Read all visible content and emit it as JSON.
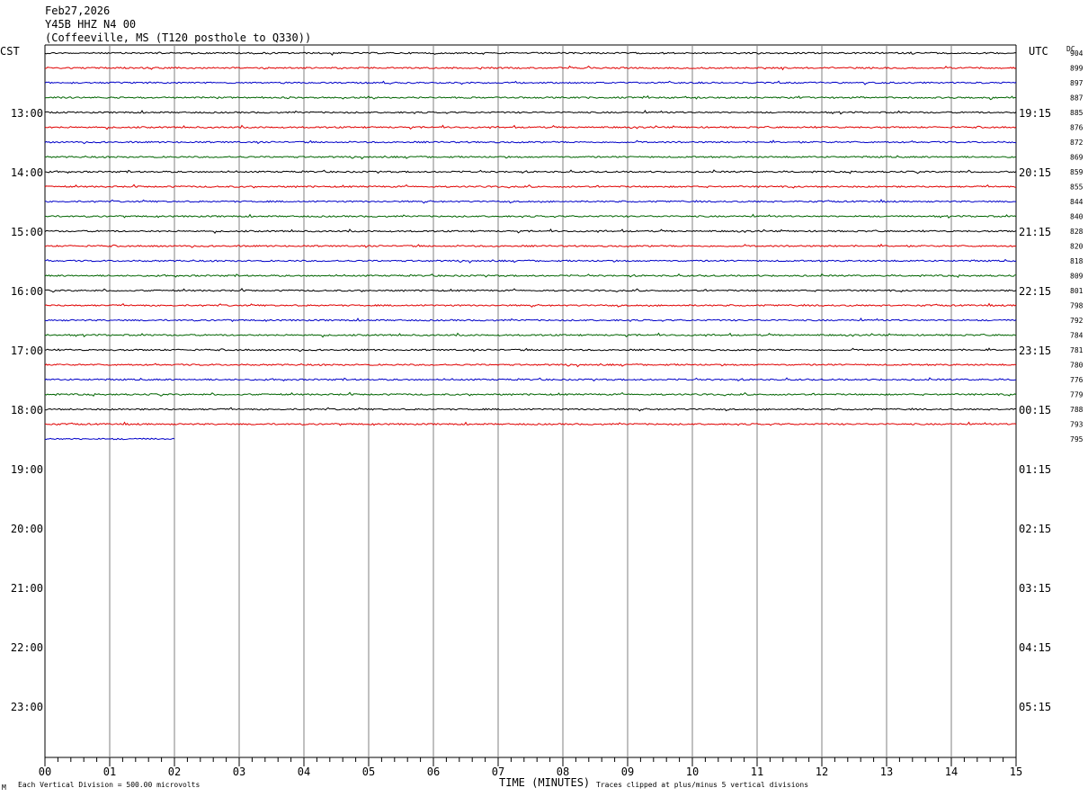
{
  "header": {
    "date": "Feb27,2026",
    "station": "Y45B HHZ N4 00",
    "location": "(Coffeeville, MS (T120 posthole to Q330))"
  },
  "left_axis_title": "CST",
  "right_axis_title": "UTC",
  "dc_header": "DC",
  "footer": {
    "scale_note": "Each Vertical Division =  500.00 microvolts",
    "clip_note": "Traces clipped at plus/minus 5 vertical divisions",
    "corner_mark": "M"
  },
  "colors": {
    "trace_cycle": [
      "#000000",
      "#e00000",
      "#0000c8",
      "#006400"
    ],
    "grid": "#808080"
  },
  "chart_data": {
    "type": "line",
    "title": "",
    "xlabel": "TIME (MINUTES)",
    "ylabel": "",
    "x_ticks": [
      "00",
      "01",
      "02",
      "03",
      "04",
      "05",
      "06",
      "07",
      "08",
      "09",
      "10",
      "11",
      "12",
      "13",
      "14",
      "15"
    ],
    "xlim": [
      0,
      15
    ],
    "trace_minutes_per_line": 15,
    "row_count": 48,
    "left_time_labels": [
      {
        "row": 4,
        "label": "13:00"
      },
      {
        "row": 8,
        "label": "14:00"
      },
      {
        "row": 12,
        "label": "15:00"
      },
      {
        "row": 16,
        "label": "16:00"
      },
      {
        "row": 20,
        "label": "17:00"
      },
      {
        "row": 24,
        "label": "18:00"
      },
      {
        "row": 28,
        "label": "19:00"
      },
      {
        "row": 32,
        "label": "20:00"
      },
      {
        "row": 36,
        "label": "21:00"
      },
      {
        "row": 40,
        "label": "22:00"
      },
      {
        "row": 44,
        "label": "23:00"
      }
    ],
    "right_time_labels": [
      {
        "row": 4,
        "label": "19:15"
      },
      {
        "row": 8,
        "label": "20:15"
      },
      {
        "row": 12,
        "label": "21:15"
      },
      {
        "row": 16,
        "label": "22:15"
      },
      {
        "row": 20,
        "label": "23:15"
      },
      {
        "row": 24,
        "label": "00:15"
      },
      {
        "row": 28,
        "label": "01:15"
      },
      {
        "row": 32,
        "label": "02:15"
      },
      {
        "row": 36,
        "label": "03:15"
      },
      {
        "row": 40,
        "label": "04:15"
      },
      {
        "row": 44,
        "label": "05:15"
      }
    ],
    "series": [
      {
        "row": 0,
        "dc": "904",
        "end_minute": 15
      },
      {
        "row": 1,
        "dc": "899",
        "end_minute": 15
      },
      {
        "row": 2,
        "dc": "897",
        "end_minute": 15
      },
      {
        "row": 3,
        "dc": "887",
        "end_minute": 15
      },
      {
        "row": 4,
        "dc": "885",
        "end_minute": 15
      },
      {
        "row": 5,
        "dc": "876",
        "end_minute": 15
      },
      {
        "row": 6,
        "dc": "872",
        "end_minute": 15
      },
      {
        "row": 7,
        "dc": "869",
        "end_minute": 15
      },
      {
        "row": 8,
        "dc": "859",
        "end_minute": 15
      },
      {
        "row": 9,
        "dc": "855",
        "end_minute": 15
      },
      {
        "row": 10,
        "dc": "844",
        "end_minute": 15
      },
      {
        "row": 11,
        "dc": "840",
        "end_minute": 15
      },
      {
        "row": 12,
        "dc": "828",
        "end_minute": 15
      },
      {
        "row": 13,
        "dc": "820",
        "end_minute": 15
      },
      {
        "row": 14,
        "dc": "818",
        "end_minute": 15
      },
      {
        "row": 15,
        "dc": "809",
        "end_minute": 15
      },
      {
        "row": 16,
        "dc": "801",
        "end_minute": 15
      },
      {
        "row": 17,
        "dc": "798",
        "end_minute": 15
      },
      {
        "row": 18,
        "dc": "792",
        "end_minute": 15
      },
      {
        "row": 19,
        "dc": "784",
        "end_minute": 15
      },
      {
        "row": 20,
        "dc": "781",
        "end_minute": 15
      },
      {
        "row": 21,
        "dc": "780",
        "end_minute": 15
      },
      {
        "row": 22,
        "dc": "776",
        "end_minute": 15
      },
      {
        "row": 23,
        "dc": "779",
        "end_minute": 15
      },
      {
        "row": 24,
        "dc": "788",
        "end_minute": 15
      },
      {
        "row": 25,
        "dc": "793",
        "end_minute": 15
      },
      {
        "row": 26,
        "dc": "795",
        "end_minute": 2
      }
    ]
  }
}
